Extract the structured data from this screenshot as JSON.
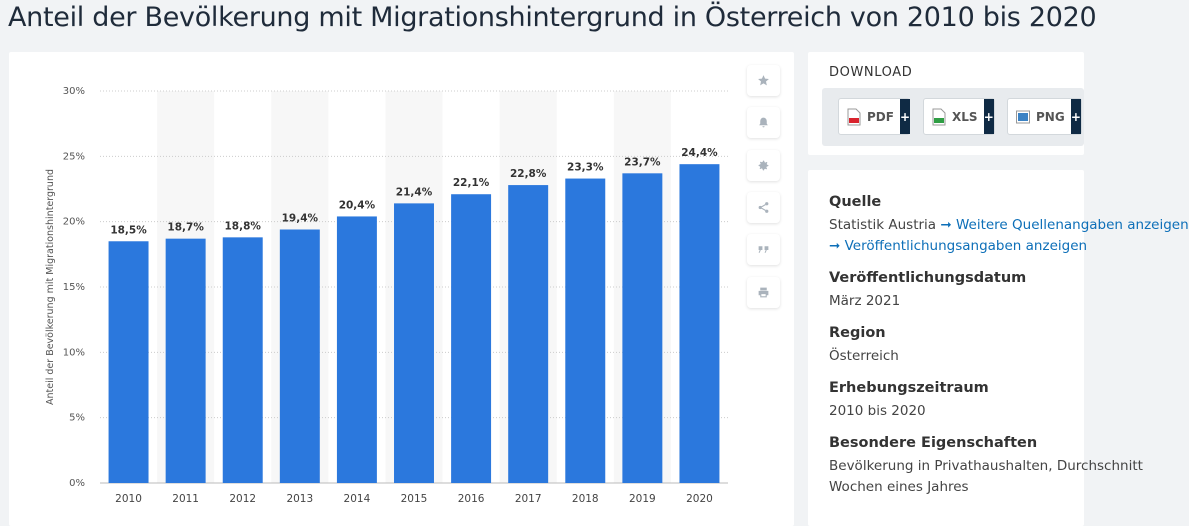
{
  "page": {
    "title": "Anteil der Bevölkerung mit Migrationshintergrund in Österreich von 2010 bis 2020"
  },
  "colors": {
    "bar": "#2b78dd",
    "band": "#f7f7f7",
    "grid": "#cccccc",
    "link": "#0d6fb8",
    "plus_bg": "#0f2a44"
  },
  "chart_data": {
    "type": "bar",
    "title": "",
    "xlabel": "",
    "ylabel": "Anteil der Bevölkerung mit Migrationshintergrund",
    "categories": [
      "2010",
      "2011",
      "2012",
      "2013",
      "2014",
      "2015",
      "2016",
      "2017",
      "2018",
      "2019",
      "2020"
    ],
    "values": [
      18.5,
      18.7,
      18.8,
      19.4,
      20.4,
      21.4,
      22.1,
      22.8,
      23.3,
      23.7,
      24.4
    ],
    "value_labels": [
      "18,5%",
      "18,7%",
      "18,8%",
      "19,4%",
      "20,4%",
      "21,4%",
      "22,1%",
      "22,8%",
      "23,3%",
      "23,7%",
      "24,4%"
    ],
    "ylim": [
      0,
      30
    ],
    "yticks": [
      0,
      5,
      10,
      15,
      20,
      25,
      30
    ],
    "ytick_labels": [
      "0%",
      "5%",
      "10%",
      "15%",
      "20%",
      "25%",
      "30%"
    ],
    "grid": true,
    "legend": "none"
  },
  "toolbar": {
    "buttons": [
      {
        "name": "favorite",
        "icon": "star-icon"
      },
      {
        "name": "notify",
        "icon": "bell-icon"
      },
      {
        "name": "settings",
        "icon": "gear-icon"
      },
      {
        "name": "share",
        "icon": "share-icon"
      },
      {
        "name": "cite",
        "icon": "quote-icon"
      },
      {
        "name": "print",
        "icon": "printer-icon"
      }
    ]
  },
  "download": {
    "heading": "DOWNLOAD",
    "buttons": [
      {
        "label": "PDF",
        "icon": "pdf-file-icon",
        "plus": "+"
      },
      {
        "label": "XLS",
        "icon": "xls-file-icon",
        "plus": "+"
      },
      {
        "label": "PNG",
        "icon": "png-file-icon",
        "plus": "+"
      }
    ]
  },
  "info": {
    "source_label": "Quelle",
    "source_name": "Statistik Austria",
    "source_link": "➞ Weitere Quellenangaben anzeigen",
    "publication_link": "➞ Veröffentlichungsangaben anzeigen",
    "pubdate_label": "Veröffentlichungsdatum",
    "pubdate_value": "März 2021",
    "region_label": "Region",
    "region_value": "Österreich",
    "period_label": "Erhebungszeitraum",
    "period_value": "2010 bis 2020",
    "special_label": "Besondere Eigenschaften",
    "special_line1": "Bevölkerung in Privathaushalten, Durchschnitt",
    "special_line2": "Wochen eines Jahres"
  }
}
